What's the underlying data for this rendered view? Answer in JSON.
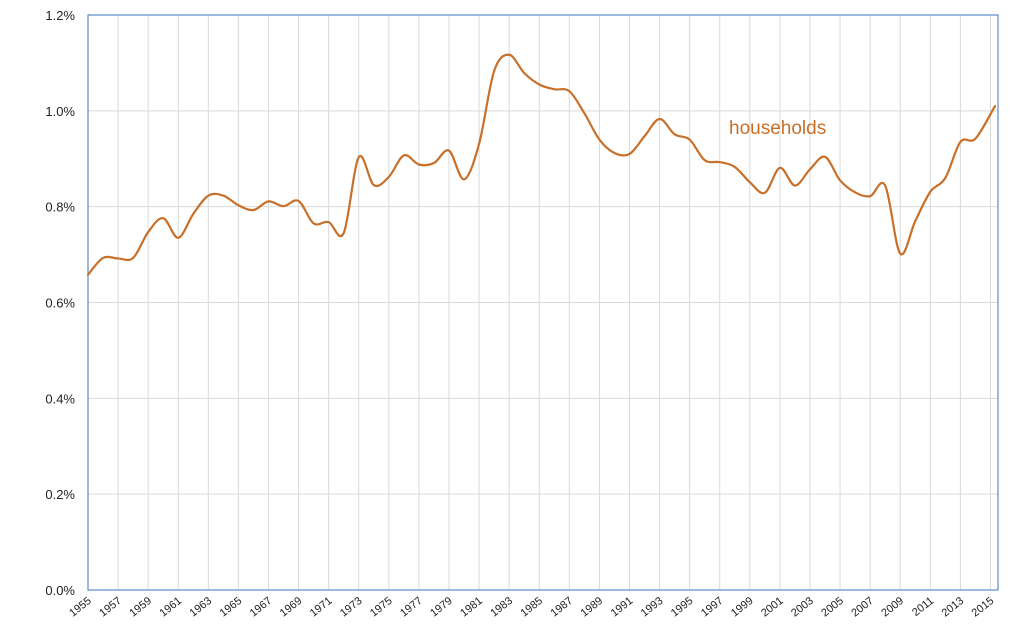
{
  "chart_data": {
    "type": "line",
    "title": "",
    "xlabel": "",
    "ylabel": "",
    "xlim": [
      1955,
      2015.5
    ],
    "ylim": [
      0,
      1.2
    ],
    "y_unit": "%",
    "yticks": [
      "0.0%",
      "0.2%",
      "0.4%",
      "0.6%",
      "0.8%",
      "1.0%",
      "1.2%"
    ],
    "xticks": [
      "1955",
      "1957",
      "1959",
      "1961",
      "1963",
      "1965",
      "1967",
      "1969",
      "1971",
      "1973",
      "1975",
      "1977",
      "1979",
      "1981",
      "1983",
      "1985",
      "1987",
      "1989",
      "1991",
      "1993",
      "1995",
      "1997",
      "1999",
      "2001",
      "2003",
      "2005",
      "2007",
      "2009",
      "2011",
      "2013",
      "2015"
    ],
    "grid": true,
    "annotation": "households",
    "colors": {
      "series": "#c8702a",
      "grid": "#d9d9d9",
      "plot_border": "#5b8cc7"
    },
    "series": [
      {
        "name": "households",
        "x": [
          1955,
          1956,
          1957,
          1958,
          1959,
          1960,
          1961,
          1962,
          1963,
          1964,
          1965,
          1966,
          1967,
          1968,
          1969,
          1970,
          1971,
          1972,
          1973,
          1974,
          1975,
          1976,
          1977,
          1978,
          1979,
          1980,
          1981,
          1982,
          1983,
          1984,
          1985,
          1986,
          1987,
          1988,
          1989,
          1990,
          1991,
          1992,
          1993,
          1994,
          1995,
          1996,
          1997,
          1998,
          1999,
          2000,
          2001,
          2002,
          2003,
          2004,
          2005,
          2006,
          2007,
          2008,
          2009,
          2010,
          2011,
          2012,
          2013,
          2014,
          2015.3
        ],
        "values": [
          0.658,
          0.693,
          0.692,
          0.693,
          0.747,
          0.776,
          0.735,
          0.785,
          0.823,
          0.823,
          0.803,
          0.793,
          0.811,
          0.801,
          0.812,
          0.765,
          0.768,
          0.745,
          0.903,
          0.845,
          0.862,
          0.907,
          0.888,
          0.891,
          0.917,
          0.857,
          0.931,
          1.083,
          1.117,
          1.079,
          1.055,
          1.045,
          1.041,
          0.995,
          0.94,
          0.912,
          0.91,
          0.947,
          0.983,
          0.951,
          0.94,
          0.897,
          0.893,
          0.883,
          0.851,
          0.829,
          0.881,
          0.844,
          0.878,
          0.904,
          0.855,
          0.83,
          0.822,
          0.844,
          0.702,
          0.77,
          0.831,
          0.86,
          0.935,
          0.942,
          1.01
        ]
      }
    ]
  }
}
